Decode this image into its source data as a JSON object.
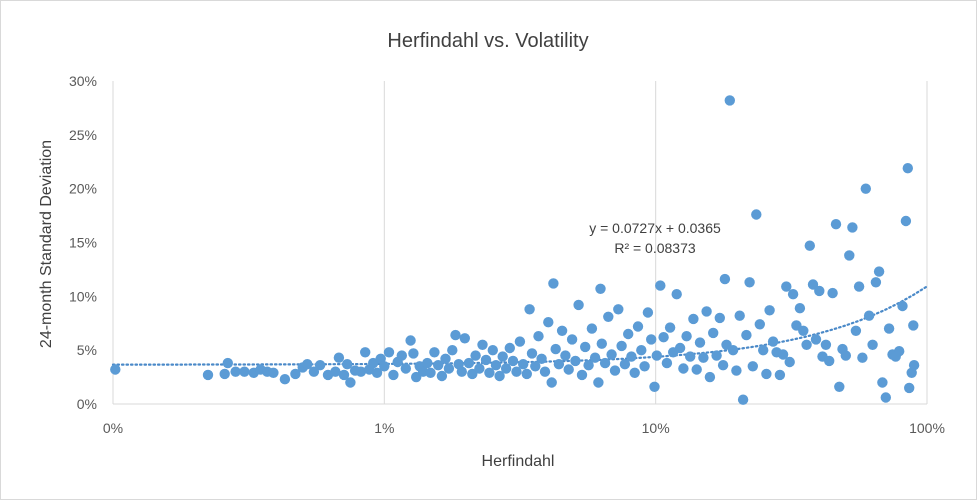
{
  "chart_data": {
    "type": "scatter",
    "title": "Herfindahl vs. Volatility",
    "xlabel": "Herfindahl",
    "ylabel": "24-month Standard Deviation",
    "x_scale": "log",
    "xlim": [
      0.001,
      1.0
    ],
    "ylim": [
      0,
      0.3
    ],
    "x_ticks": [
      {
        "value": 0.001,
        "label": "0%"
      },
      {
        "value": 0.01,
        "label": "1%"
      },
      {
        "value": 0.1,
        "label": "10%"
      },
      {
        "value": 1.0,
        "label": "100%"
      }
    ],
    "y_ticks": [
      {
        "value": 0.0,
        "label": "0%"
      },
      {
        "value": 0.05,
        "label": "5%"
      },
      {
        "value": 0.1,
        "label": "10%"
      },
      {
        "value": 0.15,
        "label": "15%"
      },
      {
        "value": 0.2,
        "label": "20%"
      },
      {
        "value": 0.25,
        "label": "25%"
      },
      {
        "value": 0.3,
        "label": "30%"
      }
    ],
    "grid": {
      "vertical": true,
      "horizontal": false
    },
    "legend": "none",
    "marker_color": "#5b9bd5",
    "trendline": {
      "type": "linear",
      "slope": 0.0727,
      "intercept": 0.0365,
      "color": "#4a89c8",
      "style": "dotted",
      "equation_label": "y = 0.0727x + 0.0365",
      "r2_label": "R² = 0.08373"
    },
    "series": [
      {
        "points": [
          [
            0.00102,
            0.032
          ],
          [
            0.00224,
            0.027
          ],
          [
            0.00258,
            0.028
          ],
          [
            0.00265,
            0.038
          ],
          [
            0.00283,
            0.03
          ],
          [
            0.00305,
            0.03
          ],
          [
            0.0033,
            0.029
          ],
          [
            0.0035,
            0.032
          ],
          [
            0.0037,
            0.03
          ],
          [
            0.0039,
            0.029
          ],
          [
            0.0043,
            0.023
          ],
          [
            0.0047,
            0.028
          ],
          [
            0.005,
            0.034
          ],
          [
            0.0052,
            0.037
          ],
          [
            0.0055,
            0.03
          ],
          [
            0.0058,
            0.036
          ],
          [
            0.0062,
            0.027
          ],
          [
            0.0066,
            0.03
          ],
          [
            0.0068,
            0.043
          ],
          [
            0.0071,
            0.027
          ],
          [
            0.0073,
            0.037
          ],
          [
            0.0075,
            0.02
          ],
          [
            0.0078,
            0.031
          ],
          [
            0.0082,
            0.03
          ],
          [
            0.0085,
            0.048
          ],
          [
            0.0088,
            0.032
          ],
          [
            0.0091,
            0.038
          ],
          [
            0.0094,
            0.029
          ],
          [
            0.0097,
            0.042
          ],
          [
            0.01,
            0.035
          ],
          [
            0.0104,
            0.048
          ],
          [
            0.0108,
            0.027
          ],
          [
            0.0112,
            0.039
          ],
          [
            0.0116,
            0.045
          ],
          [
            0.012,
            0.033
          ],
          [
            0.0125,
            0.059
          ],
          [
            0.0128,
            0.047
          ],
          [
            0.0131,
            0.025
          ],
          [
            0.0135,
            0.035
          ],
          [
            0.0139,
            0.03
          ],
          [
            0.0144,
            0.038
          ],
          [
            0.0148,
            0.029
          ],
          [
            0.0153,
            0.048
          ],
          [
            0.0158,
            0.036
          ],
          [
            0.0163,
            0.026
          ],
          [
            0.0168,
            0.042
          ],
          [
            0.0173,
            0.033
          ],
          [
            0.0178,
            0.05
          ],
          [
            0.0183,
            0.064
          ],
          [
            0.0188,
            0.037
          ],
          [
            0.0193,
            0.03
          ],
          [
            0.0198,
            0.061
          ],
          [
            0.0205,
            0.038
          ],
          [
            0.0211,
            0.028
          ],
          [
            0.0217,
            0.045
          ],
          [
            0.0224,
            0.033
          ],
          [
            0.023,
            0.055
          ],
          [
            0.0237,
            0.041
          ],
          [
            0.0244,
            0.029
          ],
          [
            0.0251,
            0.05
          ],
          [
            0.0258,
            0.036
          ],
          [
            0.0266,
            0.026
          ],
          [
            0.0273,
            0.044
          ],
          [
            0.0281,
            0.033
          ],
          [
            0.029,
            0.052
          ],
          [
            0.0298,
            0.04
          ],
          [
            0.0307,
            0.03
          ],
          [
            0.0316,
            0.058
          ],
          [
            0.0325,
            0.037
          ],
          [
            0.0335,
            0.028
          ],
          [
            0.0343,
            0.088
          ],
          [
            0.035,
            0.047
          ],
          [
            0.036,
            0.035
          ],
          [
            0.037,
            0.063
          ],
          [
            0.038,
            0.042
          ],
          [
            0.0391,
            0.03
          ],
          [
            0.0402,
            0.076
          ],
          [
            0.0414,
            0.02
          ],
          [
            0.042,
            0.112
          ],
          [
            0.0428,
            0.051
          ],
          [
            0.044,
            0.037
          ],
          [
            0.0452,
            0.068
          ],
          [
            0.0465,
            0.045
          ],
          [
            0.0478,
            0.032
          ],
          [
            0.0492,
            0.06
          ],
          [
            0.0506,
            0.04
          ],
          [
            0.052,
            0.092
          ],
          [
            0.0535,
            0.027
          ],
          [
            0.055,
            0.053
          ],
          [
            0.0566,
            0.036
          ],
          [
            0.0582,
            0.07
          ],
          [
            0.0598,
            0.043
          ],
          [
            0.0615,
            0.02
          ],
          [
            0.0626,
            0.107
          ],
          [
            0.0633,
            0.056
          ],
          [
            0.0651,
            0.038
          ],
          [
            0.0669,
            0.081
          ],
          [
            0.0688,
            0.046
          ],
          [
            0.0708,
            0.031
          ],
          [
            0.0728,
            0.088
          ],
          [
            0.0749,
            0.054
          ],
          [
            0.077,
            0.037
          ],
          [
            0.0792,
            0.065
          ],
          [
            0.0814,
            0.044
          ],
          [
            0.0837,
            0.029
          ],
          [
            0.0861,
            0.072
          ],
          [
            0.0885,
            0.05
          ],
          [
            0.091,
            0.035
          ],
          [
            0.0936,
            0.085
          ],
          [
            0.0963,
            0.06
          ],
          [
            0.099,
            0.016
          ],
          [
            0.101,
            0.045
          ],
          [
            0.104,
            0.11
          ],
          [
            0.107,
            0.062
          ],
          [
            0.11,
            0.038
          ],
          [
            0.113,
            0.071
          ],
          [
            0.116,
            0.048
          ],
          [
            0.1195,
            0.102
          ],
          [
            0.123,
            0.052
          ],
          [
            0.1265,
            0.033
          ],
          [
            0.13,
            0.063
          ],
          [
            0.134,
            0.044
          ],
          [
            0.1378,
            0.079
          ],
          [
            0.1417,
            0.032
          ],
          [
            0.1457,
            0.057
          ],
          [
            0.1499,
            0.043
          ],
          [
            0.1541,
            0.086
          ],
          [
            0.1585,
            0.025
          ],
          [
            0.163,
            0.066
          ],
          [
            0.1677,
            0.045
          ],
          [
            0.1724,
            0.08
          ],
          [
            0.1773,
            0.036
          ],
          [
            0.18,
            0.116
          ],
          [
            0.1824,
            0.055
          ],
          [
            0.1876,
            0.282
          ],
          [
            0.1929,
            0.05
          ],
          [
            0.1984,
            0.031
          ],
          [
            0.204,
            0.082
          ],
          [
            0.21,
            0.004
          ],
          [
            0.216,
            0.064
          ],
          [
            0.222,
            0.113
          ],
          [
            0.228,
            0.035
          ],
          [
            0.235,
            0.176
          ],
          [
            0.242,
            0.074
          ],
          [
            0.249,
            0.05
          ],
          [
            0.256,
            0.028
          ],
          [
            0.263,
            0.087
          ],
          [
            0.271,
            0.058
          ],
          [
            0.279,
            0.048
          ],
          [
            0.287,
            0.027
          ],
          [
            0.295,
            0.046
          ],
          [
            0.303,
            0.109
          ],
          [
            0.312,
            0.039
          ],
          [
            0.321,
            0.102
          ],
          [
            0.33,
            0.073
          ],
          [
            0.34,
            0.089
          ],
          [
            0.35,
            0.068
          ],
          [
            0.36,
            0.055
          ],
          [
            0.37,
            0.147
          ],
          [
            0.38,
            0.111
          ],
          [
            0.39,
            0.06
          ],
          [
            0.401,
            0.105
          ],
          [
            0.412,
            0.044
          ],
          [
            0.424,
            0.055
          ],
          [
            0.436,
            0.04
          ],
          [
            0.449,
            0.103
          ],
          [
            0.462,
            0.167
          ],
          [
            0.475,
            0.016
          ],
          [
            0.488,
            0.051
          ],
          [
            0.502,
            0.045
          ],
          [
            0.517,
            0.138
          ],
          [
            0.531,
            0.164
          ],
          [
            0.547,
            0.068
          ],
          [
            0.562,
            0.109
          ],
          [
            0.578,
            0.043
          ],
          [
            0.595,
            0.2
          ],
          [
            0.612,
            0.082
          ],
          [
            0.63,
            0.055
          ],
          [
            0.648,
            0.113
          ],
          [
            0.666,
            0.123
          ],
          [
            0.685,
            0.02
          ],
          [
            0.705,
            0.006
          ],
          [
            0.725,
            0.07
          ],
          [
            0.746,
            0.046
          ],
          [
            0.767,
            0.044
          ],
          [
            0.79,
            0.049
          ],
          [
            0.812,
            0.091
          ],
          [
            0.836,
            0.17
          ],
          [
            0.85,
            0.219
          ],
          [
            0.86,
            0.015
          ],
          [
            0.878,
            0.029
          ],
          [
            0.89,
            0.073
          ],
          [
            0.896,
            0.036
          ]
        ]
      }
    ]
  }
}
